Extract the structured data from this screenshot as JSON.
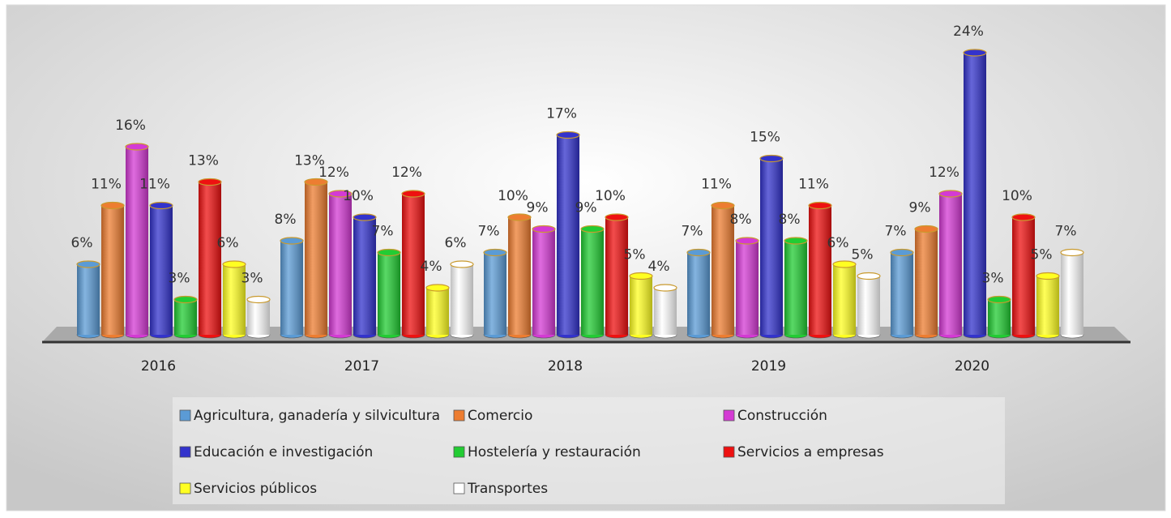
{
  "chart_data": {
    "type": "bar3d",
    "categories": [
      "2016",
      "2017",
      "2018",
      "2019",
      "2020"
    ],
    "series": [
      {
        "name": "Agricultura, ganadería y silvicultura",
        "color": "#5b9bd5",
        "values": [
          6,
          8,
          7,
          7,
          7
        ],
        "value_labels": [
          "6%",
          "8%",
          "7%",
          "7%",
          "7%"
        ]
      },
      {
        "name": "Comercio",
        "color": "#ed7d31",
        "values": [
          11,
          13,
          10,
          11,
          9
        ],
        "value_labels": [
          "11%",
          "13%",
          "10%",
          "11%",
          "9%"
        ]
      },
      {
        "name": "Construcción",
        "color": "#d43ad4",
        "values": [
          16,
          12,
          9,
          8,
          12
        ],
        "value_labels": [
          "16%",
          "12%",
          "9%",
          "8%",
          "12%"
        ]
      },
      {
        "name": "Educación e investigación",
        "color": "#3333cc",
        "values": [
          11,
          10,
          17,
          15,
          24
        ],
        "value_labels": [
          "11%",
          "10%",
          "17%",
          "15%",
          "24%"
        ]
      },
      {
        "name": "Hostelería y restauración",
        "color": "#22cc33",
        "values": [
          3,
          7,
          9,
          8,
          3
        ],
        "value_labels": [
          "3%",
          "7%",
          "9%",
          "8%",
          "3%"
        ]
      },
      {
        "name": "Servicios a empresas",
        "color": "#ee1111",
        "values": [
          13,
          12,
          10,
          11,
          10
        ],
        "value_labels": [
          "13%",
          "12%",
          "10%",
          "11%",
          "10%"
        ]
      },
      {
        "name": "Servicios públicos",
        "color": "#ffff22",
        "values": [
          6,
          4,
          5,
          6,
          5
        ],
        "value_labels": [
          "6%",
          "4%",
          "5%",
          "6%",
          "5%"
        ]
      },
      {
        "name": "Transportes",
        "color": "#ffffff",
        "values": [
          3,
          6,
          4,
          5,
          7
        ],
        "value_labels": [
          "3%",
          "6%",
          "4%",
          "5%",
          "7%"
        ]
      }
    ]
  }
}
